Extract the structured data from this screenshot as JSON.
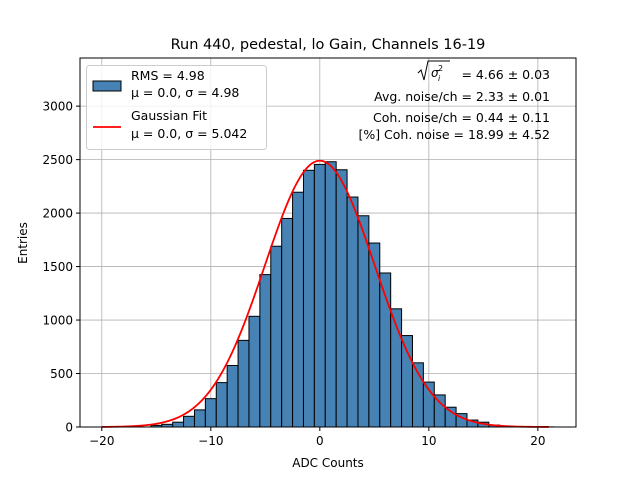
{
  "chart_data": {
    "type": "bar",
    "title": "Run 440, pedestal, lo Gain, Channels 16-19",
    "xlabel": "ADC Counts",
    "ylabel": "Entries",
    "xlim": [
      -22.0,
      23.5
    ],
    "ylim": [
      0,
      3450
    ],
    "grid": true,
    "legend_position": "top-left",
    "bar_color": "#4682b4",
    "fit_color": "#ff0000",
    "xticks": [
      -20,
      -10,
      0,
      10,
      20
    ],
    "xtick_labels": [
      "−20",
      "−10",
      "0",
      "10",
      "20"
    ],
    "yticks": [
      0,
      500,
      1000,
      1500,
      2000,
      2500,
      3000
    ],
    "ytick_labels": [
      "0",
      "500",
      "1000",
      "1500",
      "2000",
      "2500",
      "3000"
    ],
    "bins": [
      {
        "x0": -15.5,
        "x1": -14.5,
        "count": 15
      },
      {
        "x0": -14.5,
        "x1": -13.5,
        "count": 25
      },
      {
        "x0": -13.5,
        "x1": -12.5,
        "count": 45
      },
      {
        "x0": -12.5,
        "x1": -11.5,
        "count": 100
      },
      {
        "x0": -11.5,
        "x1": -10.5,
        "count": 160
      },
      {
        "x0": -10.5,
        "x1": -9.5,
        "count": 265
      },
      {
        "x0": -9.5,
        "x1": -8.5,
        "count": 415
      },
      {
        "x0": -8.5,
        "x1": -7.5,
        "count": 575
      },
      {
        "x0": -7.5,
        "x1": -6.5,
        "count": 810
      },
      {
        "x0": -6.5,
        "x1": -5.5,
        "count": 1035
      },
      {
        "x0": -5.5,
        "x1": -4.5,
        "count": 1425
      },
      {
        "x0": -4.5,
        "x1": -3.5,
        "count": 1690
      },
      {
        "x0": -3.5,
        "x1": -2.5,
        "count": 1950
      },
      {
        "x0": -2.5,
        "x1": -1.5,
        "count": 2195
      },
      {
        "x0": -1.5,
        "x1": -0.5,
        "count": 2400
      },
      {
        "x0": -0.5,
        "x1": 0.5,
        "count": 2455
      },
      {
        "x0": 0.5,
        "x1": 1.5,
        "count": 2480
      },
      {
        "x0": 1.5,
        "x1": 2.5,
        "count": 2405
      },
      {
        "x0": 2.5,
        "x1": 3.5,
        "count": 2150
      },
      {
        "x0": 3.5,
        "x1": 4.5,
        "count": 1975
      },
      {
        "x0": 4.5,
        "x1": 5.5,
        "count": 1720
      },
      {
        "x0": 5.5,
        "x1": 6.5,
        "count": 1440
      },
      {
        "x0": 6.5,
        "x1": 7.5,
        "count": 1105
      },
      {
        "x0": 7.5,
        "x1": 8.5,
        "count": 855
      },
      {
        "x0": 8.5,
        "x1": 9.5,
        "count": 600
      },
      {
        "x0": 9.5,
        "x1": 10.5,
        "count": 420
      },
      {
        "x0": 10.5,
        "x1": 11.5,
        "count": 300
      },
      {
        "x0": 11.5,
        "x1": 12.5,
        "count": 185
      },
      {
        "x0": 12.5,
        "x1": 13.5,
        "count": 125
      },
      {
        "x0": 13.5,
        "x1": 14.5,
        "count": 65
      },
      {
        "x0": 14.5,
        "x1": 15.5,
        "count": 45
      },
      {
        "x0": 15.5,
        "x1": 16.5,
        "count": 18
      },
      {
        "x0": 16.5,
        "x1": 17.5,
        "count": 8
      },
      {
        "x0": 17.5,
        "x1": 18.5,
        "count": 4
      },
      {
        "x0": 18.5,
        "x1": 19.5,
        "count": 2
      },
      {
        "x0": 19.5,
        "x1": 20.5,
        "count": 1
      },
      {
        "x0": 20.5,
        "x1": 21.5,
        "count": 1
      }
    ],
    "fit": {
      "mu": 0.0,
      "sigma": 5.042,
      "amplitude": 2490,
      "x_range": [
        -20,
        21
      ]
    },
    "legend": [
      {
        "line1": "RMS = 4.98",
        "line2": "μ = 0.0, σ = 4.98",
        "kind": "patch"
      },
      {
        "line1": "Gaussian Fit",
        "line2": "μ = 0.0, σ = 5.042",
        "kind": "line"
      }
    ],
    "annotations": {
      "sigma_line_value": " = 4.66 ± 0.03",
      "avg_noise": "Avg. noise/ch = 2.33 ± 0.01",
      "coh_noise": "Coh. noise/ch = 0.44 ± 0.11",
      "coh_noise_pct": "[%] Coh. noise = 18.99 ± 4.52"
    }
  }
}
